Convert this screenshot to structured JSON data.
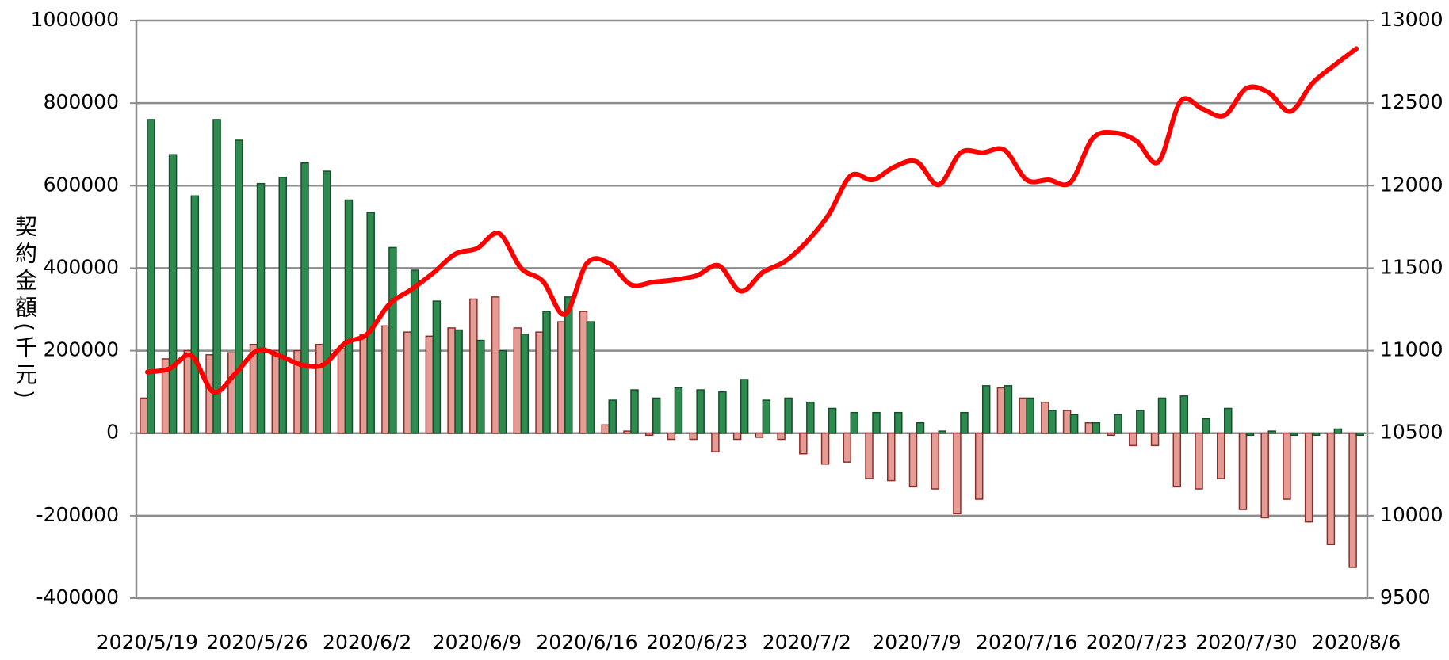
{
  "chart_data": {
    "type": "bar",
    "y_label": "契約金額(千元)",
    "categories": [
      "2020/5/19",
      null,
      null,
      null,
      null,
      "2020/5/26",
      null,
      null,
      null,
      null,
      "2020/6/2",
      null,
      null,
      null,
      null,
      "2020/6/9",
      null,
      null,
      null,
      null,
      "2020/6/16",
      null,
      null,
      null,
      null,
      "2020/6/23",
      null,
      null,
      null,
      null,
      "2020/7/2",
      null,
      null,
      null,
      null,
      "2020/7/9",
      null,
      null,
      null,
      null,
      "2020/7/16",
      null,
      null,
      null,
      null,
      "2020/7/23",
      null,
      null,
      null,
      null,
      "2020/7/30",
      null,
      null,
      null,
      null,
      "2020/8/6"
    ],
    "series": [
      {
        "color": "#e59c95",
        "values": [
          85000,
          180000,
          200000,
          190000,
          195000,
          215000,
          200000,
          200000,
          215000,
          205000,
          240000,
          260000,
          245000,
          235000,
          255000,
          325000,
          330000,
          255000,
          245000,
          270000,
          295000,
          20000,
          5000,
          -5000,
          -15000,
          -15000,
          -45000,
          -15000,
          -10000,
          -15000,
          -50000,
          -75000,
          -70000,
          -110000,
          -115000,
          -130000,
          -135000,
          -195000,
          -160000,
          110000,
          85000,
          75000,
          55000,
          25000,
          -5000,
          -30000,
          -30000,
          -130000,
          -135000,
          -110000,
          -185000,
          -205000,
          -160000,
          -215000,
          -270000,
          -325000
        ]
      },
      {
        "color": "#2e8b4f",
        "values": [
          760000,
          675000,
          575000,
          760000,
          710000,
          605000,
          620000,
          655000,
          635000,
          565000,
          535000,
          450000,
          395000,
          320000,
          250000,
          225000,
          200000,
          240000,
          295000,
          330000,
          270000,
          80000,
          105000,
          85000,
          110000,
          105000,
          100000,
          130000,
          80000,
          85000,
          75000,
          60000,
          50000,
          50000,
          50000,
          25000,
          5000,
          50000,
          115000,
          115000,
          85000,
          55000,
          45000,
          25000,
          45000,
          55000,
          85000,
          90000,
          35000,
          60000,
          -5000,
          5000,
          -5000,
          -5000,
          10000,
          -5000
        ]
      },
      {
        "color": "#ff0000",
        "type": "line",
        "axis": "y2",
        "values": [
          10870,
          10890,
          10970,
          10750,
          10860,
          11000,
          10970,
          10915,
          10915,
          11045,
          11100,
          11280,
          11370,
          11470,
          11585,
          11620,
          11710,
          11500,
          11420,
          11220,
          11530,
          11530,
          11400,
          11415,
          11430,
          11455,
          11515,
          11360,
          11475,
          11540,
          11660,
          11825,
          12060,
          12035,
          12115,
          12145,
          12005,
          12200,
          12200,
          12215,
          12035,
          12035,
          12020,
          12285,
          12320,
          12270,
          12145,
          12510,
          12465,
          12425,
          12590,
          12565,
          12450,
          12620,
          12730,
          12830
        ]
      }
    ],
    "ylim": [
      -400000,
      1000000
    ],
    "yticks": [
      -400000,
      -200000,
      0,
      200000,
      400000,
      600000,
      800000,
      1000000
    ],
    "y2lim": [
      9500,
      13000
    ],
    "y2ticks": [
      9500,
      10000,
      10500,
      11000,
      11500,
      12000,
      12500,
      13000
    ],
    "grid": true
  }
}
